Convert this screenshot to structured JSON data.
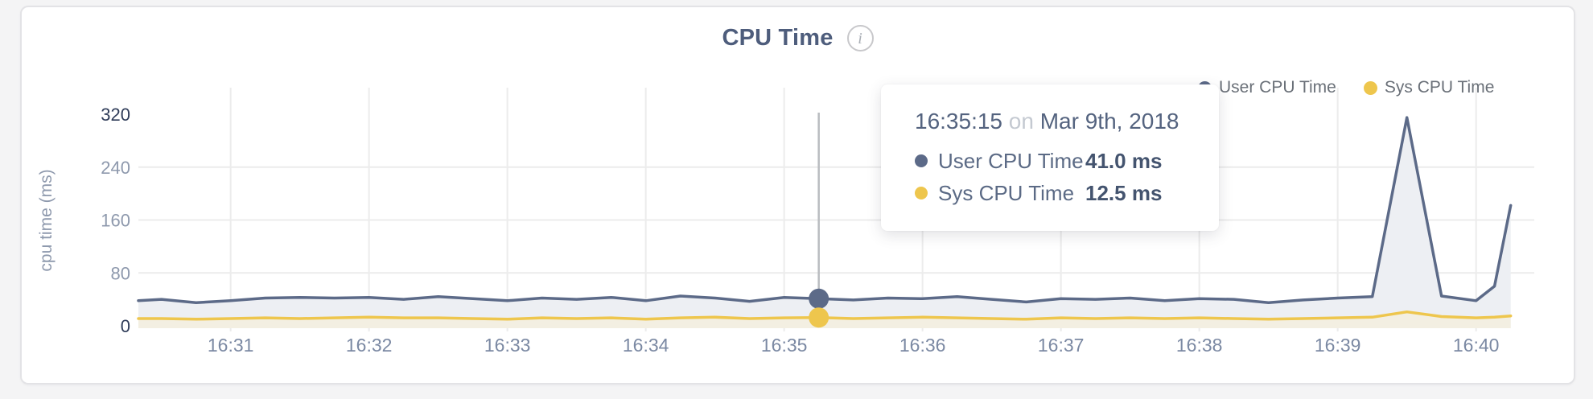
{
  "header": {
    "title": "CPU Time",
    "info_glyph": "i"
  },
  "legend": {
    "items": [
      {
        "label": "User CPU Time",
        "color": "#5c6a88"
      },
      {
        "label": "Sys CPU Time",
        "color": "#eec64d"
      }
    ]
  },
  "tooltip": {
    "time": "16:35:15",
    "connector": "on",
    "date": "Mar 9th, 2018",
    "rows": [
      {
        "label": "User CPU Time",
        "value": "41.0 ms",
        "color": "#5c6a88"
      },
      {
        "label": "Sys CPU Time",
        "value": "12.5 ms",
        "color": "#eec64d"
      }
    ]
  },
  "chart_data": {
    "type": "line",
    "title": "CPU Time",
    "xlabel": "",
    "ylabel": "cpu time (ms)",
    "ylim": [
      0,
      320
    ],
    "y_ticks": [
      0,
      80,
      160,
      240,
      320
    ],
    "x_ticks": [
      "16:31",
      "16:32",
      "16:33",
      "16:34",
      "16:35",
      "16:36",
      "16:37",
      "16:38",
      "16:39",
      "16:40"
    ],
    "grid": true,
    "legend_position": "top-right",
    "x": [
      "16:30:20",
      "16:30:30",
      "16:30:45",
      "16:31:00",
      "16:31:15",
      "16:31:30",
      "16:31:45",
      "16:32:00",
      "16:32:15",
      "16:32:30",
      "16:32:45",
      "16:33:00",
      "16:33:15",
      "16:33:30",
      "16:33:45",
      "16:34:00",
      "16:34:15",
      "16:34:30",
      "16:34:45",
      "16:35:00",
      "16:35:15",
      "16:35:30",
      "16:35:45",
      "16:36:00",
      "16:36:15",
      "16:36:30",
      "16:36:45",
      "16:37:00",
      "16:37:15",
      "16:37:30",
      "16:37:45",
      "16:38:00",
      "16:38:15",
      "16:38:30",
      "16:38:45",
      "16:39:00",
      "16:39:15",
      "16:39:30",
      "16:39:45",
      "16:40:00",
      "16:40:08",
      "16:40:15"
    ],
    "series": [
      {
        "name": "User CPU Time",
        "color": "#5c6a88",
        "fill": "#edeff3",
        "values": [
          38,
          40,
          35,
          38,
          42,
          43,
          42,
          43,
          40,
          44,
          41,
          38,
          42,
          40,
          43,
          38,
          45,
          42,
          37,
          43,
          41,
          39,
          42,
          41,
          44,
          40,
          36,
          41,
          40,
          42,
          38,
          41,
          40,
          35,
          39,
          42,
          44,
          315,
          45,
          38,
          60,
          182
        ]
      },
      {
        "name": "Sys CPU Time",
        "color": "#eec64d",
        "fill": "#f3efe2",
        "values": [
          11,
          11,
          10,
          11,
          12,
          11,
          12,
          13,
          12,
          12,
          11,
          10,
          12,
          11,
          12,
          10,
          12,
          13,
          11,
          12,
          12.5,
          11,
          12,
          13,
          12,
          11,
          10,
          12,
          11,
          12,
          11,
          12,
          11,
          10,
          11,
          12,
          13,
          21,
          14,
          12,
          13,
          15
        ]
      }
    ],
    "highlight": {
      "time": "16:35:15",
      "values": [
        41.0,
        12.5
      ]
    },
    "colors": {
      "grid": "#ececec",
      "hover_line": "#b9bcc0",
      "axis_major_tick": "#2e3b58",
      "axis_minor_tick": "#8e99ad",
      "x_tick": "#7b89a3"
    }
  }
}
